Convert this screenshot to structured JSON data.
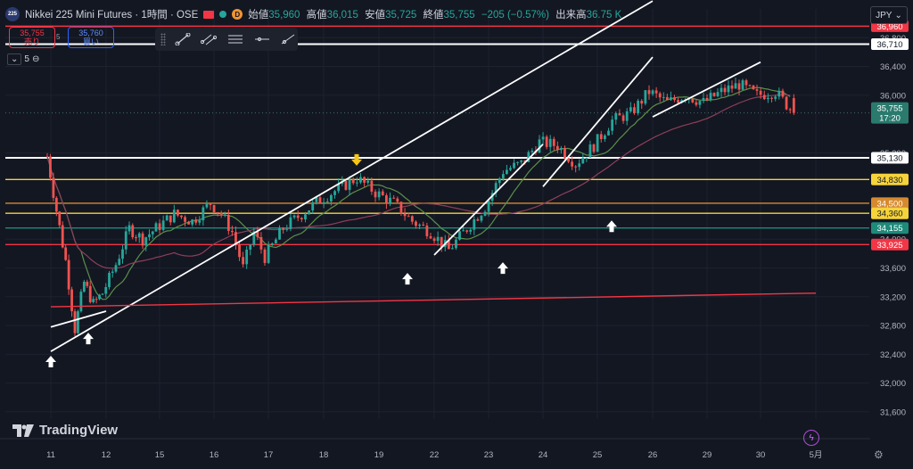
{
  "header": {
    "logo_text": "225",
    "title": "Nikkei 225 Mini Futures · 1時間 · OSE",
    "d_badge": "D",
    "ohlc": [
      {
        "k": "始値",
        "v": "35,960"
      },
      {
        "k": "高値",
        "v": "36,015"
      },
      {
        "k": "安値",
        "v": "35,725"
      },
      {
        "k": "終値",
        "v": "35,755"
      },
      {
        "k": "",
        "v": "−205 (−0.57%)"
      },
      {
        "k": "出来高",
        "v": "36.75 K"
      }
    ]
  },
  "trade": {
    "sell_price": "35,755",
    "sell_label": "売り",
    "spread": "5",
    "buy_price": "35,760",
    "buy_label": "買い"
  },
  "indicator": {
    "value": "5"
  },
  "currency": "JPY",
  "brand": "TradingView",
  "colors": {
    "bg": "#131722",
    "up": "#26a69a",
    "down": "#ef5350",
    "white_line": "#ffffff",
    "red_line": "#f23645",
    "yellow_line": "#f5d33b",
    "orange_line": "#d68a2f",
    "teal_line": "#1e8a7a",
    "ma_green": "#5b8f4a",
    "ma_pink": "#8e3f5a"
  },
  "chart_data": {
    "type": "candlestick",
    "x_ticks": [
      "11",
      "12",
      "15",
      "16",
      "17",
      "18",
      "19",
      "22",
      "23",
      "24",
      "25",
      "26",
      "29",
      "30",
      "5月"
    ],
    "y_ticks": [
      31600,
      32000,
      32400,
      32800,
      33200,
      33600,
      34000,
      35200,
      36000,
      36400,
      36800
    ],
    "y_range": [
      31500,
      37200
    ],
    "current_price": {
      "value": 35755,
      "label": "35,755",
      "countdown": "17:20"
    },
    "horizontal_levels": [
      {
        "value": 36960,
        "label": "36,960",
        "color": "#f23645"
      },
      {
        "value": 36710,
        "label": "36,710",
        "color": "#ffffff"
      },
      {
        "value": 35130,
        "label": "35,130",
        "color": "#ffffff"
      },
      {
        "value": 34830,
        "label": "34,830",
        "color": "#f5d33b"
      },
      {
        "value": 34500,
        "label": "34,500",
        "color": "#d68a2f"
      },
      {
        "value": 34360,
        "label": "34,360",
        "color": "#f5d33b"
      },
      {
        "value": 34155,
        "label": "34,155",
        "color": "#1e8a7a"
      },
      {
        "value": 33925,
        "label": "33,925",
        "color": "#f23645"
      }
    ],
    "trendlines": [
      {
        "from": [
          "11",
          32440
        ],
        "to": [
          "26",
          37310
        ],
        "color": "#ffffff"
      },
      {
        "from": [
          "11",
          32780
        ],
        "to": [
          "12",
          33000
        ],
        "color": "#ffffff"
      },
      {
        "from": [
          "22",
          33780
        ],
        "to": [
          "24",
          35320
        ],
        "color": "#ffffff"
      },
      {
        "from": [
          "24",
          34730
        ],
        "to": [
          "26",
          36530
        ],
        "color": "#ffffff"
      },
      {
        "from": [
          "26",
          35700
        ],
        "to": [
          "30",
          36460
        ],
        "color": "#ffffff"
      },
      {
        "from": [
          "11",
          33060
        ],
        "to": [
          "5月",
          33250
        ],
        "color": "#f23645"
      }
    ],
    "up_arrows": [
      {
        "x": "11",
        "y": 32380
      },
      {
        "x": "11",
        "y": 32700
      },
      {
        "x": "16",
        "y": 33530
      },
      {
        "x": "17",
        "y": 33680
      },
      {
        "x": "18",
        "y": 34260
      }
    ],
    "down_arrows": [
      {
        "x": "18",
        "y": 35020
      }
    ],
    "close_path": [
      [
        "11",
        35150
      ],
      [
        "11",
        34400
      ],
      [
        "11",
        33700
      ],
      [
        "11",
        32750
      ],
      [
        "11",
        33400
      ],
      [
        "11",
        33100
      ],
      [
        "12",
        33250
      ],
      [
        "12",
        33650
      ],
      [
        "12",
        34150
      ],
      [
        "12",
        34000
      ],
      [
        "15",
        34150
      ],
      [
        "15",
        34350
      ],
      [
        "15",
        34250
      ],
      [
        "16",
        34500
      ],
      [
        "16",
        34350
      ],
      [
        "16",
        34100
      ],
      [
        "16",
        33600
      ],
      [
        "16",
        34100
      ],
      [
        "17",
        33750
      ],
      [
        "17",
        34150
      ],
      [
        "17",
        34350
      ],
      [
        "18",
        34550
      ],
      [
        "18",
        34700
      ],
      [
        "18",
        34850
      ],
      [
        "19",
        34650
      ],
      [
        "19",
        34500
      ],
      [
        "19",
        34250
      ],
      [
        "22",
        34100
      ],
      [
        "22",
        33850
      ],
      [
        "22",
        34150
      ],
      [
        "23",
        34450
      ],
      [
        "23",
        34950
      ],
      [
        "23",
        35050
      ],
      [
        "24",
        35350
      ],
      [
        "24",
        35300
      ],
      [
        "24",
        35050
      ],
      [
        "25",
        35300
      ],
      [
        "25",
        35650
      ],
      [
        "25",
        35750
      ],
      [
        "26",
        36050
      ],
      [
        "26",
        35900
      ],
      [
        "26",
        36000
      ],
      [
        "29",
        35900
      ],
      [
        "29",
        36050
      ],
      [
        "29",
        36150
      ],
      [
        "30",
        36000
      ],
      [
        "30",
        36050
      ],
      [
        "30",
        35755
      ]
    ]
  }
}
